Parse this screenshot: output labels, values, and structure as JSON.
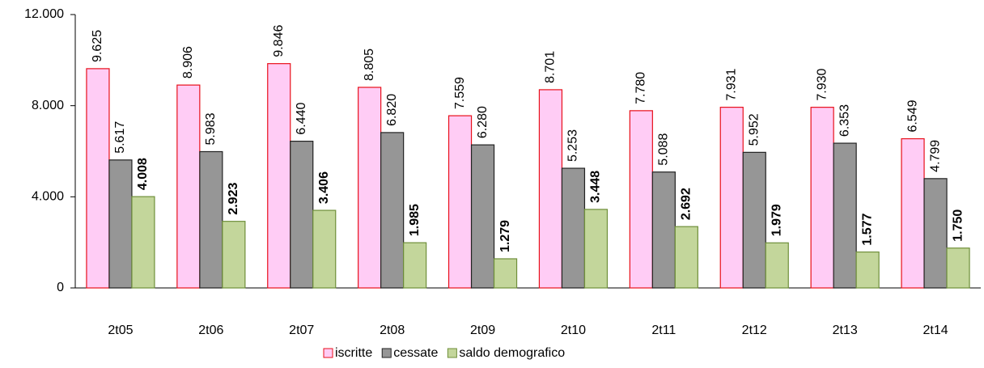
{
  "chart_data": {
    "type": "bar",
    "categories": [
      "2t05",
      "2t06",
      "2t07",
      "2t08",
      "2t09",
      "2t10",
      "2t11",
      "2t12",
      "2t13",
      "2t14"
    ],
    "series": [
      {
        "name": "iscritte",
        "color": "#ffccf5",
        "stroke": "#e8101a",
        "values": [
          9625,
          8906,
          9846,
          8805,
          7559,
          8701,
          7780,
          7931,
          7930,
          6549
        ],
        "value_labels": [
          "9.625",
          "8.906",
          "9.846",
          "8.805",
          "7.559",
          "8.701",
          "7.780",
          "7.931",
          "7.930",
          "6.549"
        ]
      },
      {
        "name": "cessate",
        "color": "#969696",
        "stroke": "#222222",
        "values": [
          5617,
          5983,
          6440,
          6820,
          6280,
          5253,
          5088,
          5952,
          6353,
          4799
        ],
        "value_labels": [
          "5.617",
          "5.983",
          "6.440",
          "6.820",
          "6.280",
          "5.253",
          "5.088",
          "5.952",
          "6.353",
          "4.799"
        ]
      },
      {
        "name": "saldo demografico",
        "color": "#c3d69b",
        "stroke": "#6f8f3a",
        "bold_labels": true,
        "values": [
          4008,
          2923,
          3406,
          1985,
          1279,
          3448,
          2692,
          1979,
          1577,
          1750
        ],
        "value_labels": [
          "4.008",
          "2.923",
          "3.406",
          "1.985",
          "1.279",
          "3.448",
          "2.692",
          "1.979",
          "1.577",
          "1.750"
        ]
      }
    ],
    "ylim": [
      0,
      12000
    ],
    "yticks": [
      0,
      {
        "value": 4000,
        "label": "4.000"
      },
      {
        "value": 8000,
        "label": "8.000"
      },
      {
        "value": 12000,
        "label": "12.000"
      }
    ],
    "legend": "bottom"
  }
}
